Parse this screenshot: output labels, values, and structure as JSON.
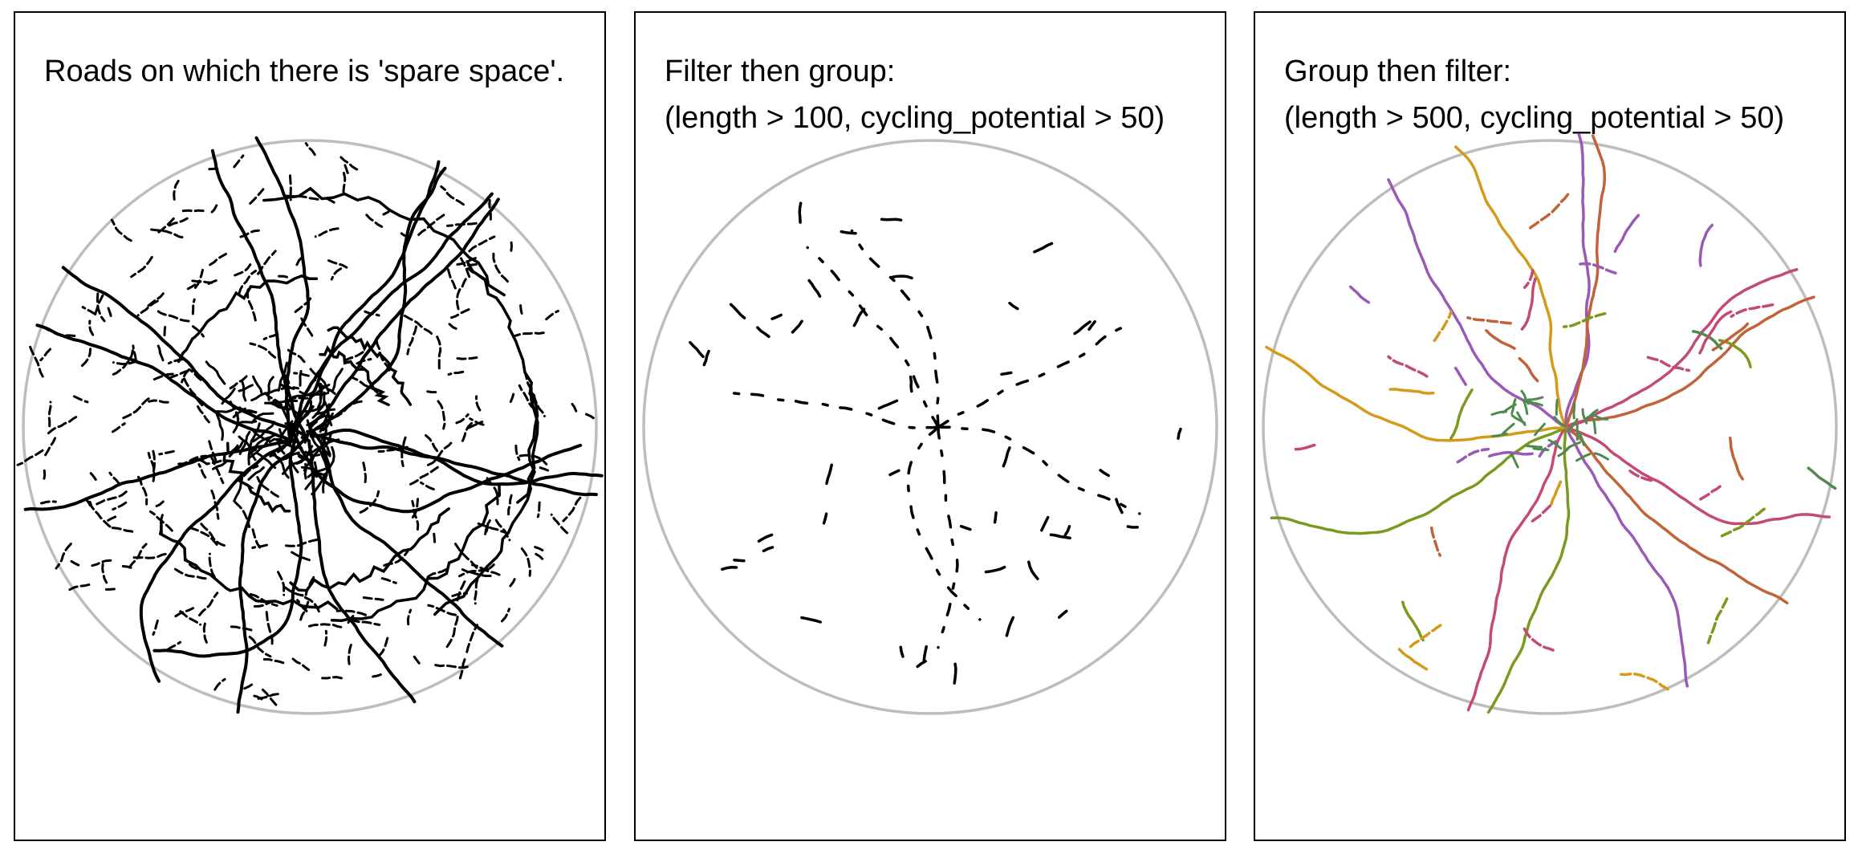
{
  "panels": [
    {
      "title_lines": [
        "Roads on which there is 'spare space'."
      ],
      "style": "black"
    },
    {
      "title_lines": [
        "Filter then group:",
        "(length > 100, cycling_potential > 50)"
      ],
      "style": "black-sparse"
    },
    {
      "title_lines": [
        "Group then filter:",
        "(length > 500, cycling_potential > 50)"
      ],
      "style": "colored"
    }
  ],
  "colors": {
    "boundary": "#bdbdbd",
    "roads": "#000000",
    "groups": [
      "#9b59b6",
      "#d49a1a",
      "#c0623a",
      "#7a9a1e",
      "#4e8a4e",
      "#c44a72"
    ]
  }
}
